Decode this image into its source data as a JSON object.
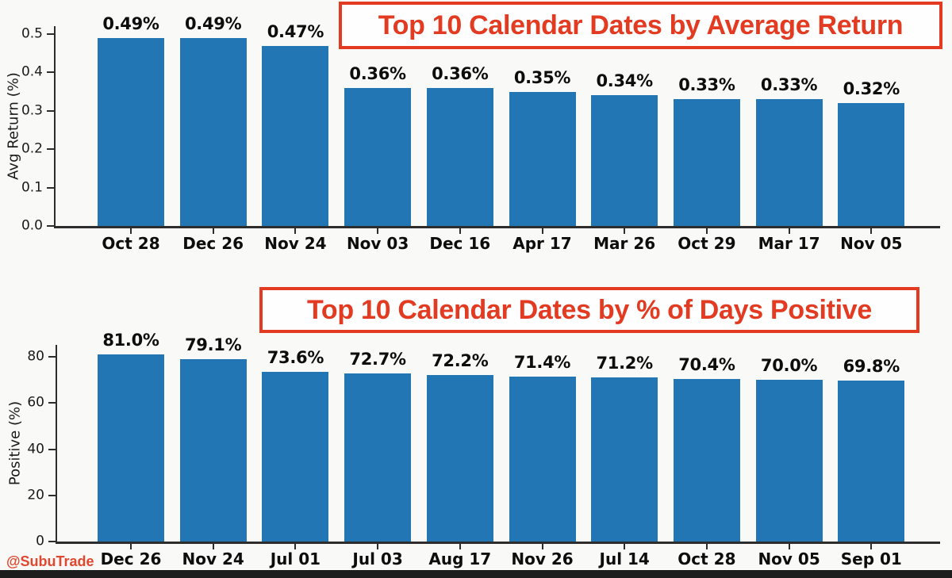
{
  "page": {
    "watermark": "@SubuTrade",
    "colors": {
      "accent_red": "#e23b22",
      "watermark_red": "#e0472e",
      "bar_blue": "#2276b4",
      "background": "#f9f9f8",
      "bottom_bar": "#1d1d1d",
      "axis": "#2d2d2d",
      "text": "#0d0d0d"
    }
  },
  "chart_data": [
    {
      "type": "bar",
      "title": "Top 10 Calendar Dates by Average Return",
      "xlabel": "",
      "ylabel": "Avg Return (%)",
      "categories": [
        "Oct 28",
        "Dec 26",
        "Nov 24",
        "Nov 03",
        "Dec 16",
        "Apr 17",
        "Mar 26",
        "Oct 29",
        "Mar 17",
        "Nov 05"
      ],
      "values": [
        0.49,
        0.49,
        0.47,
        0.36,
        0.36,
        0.35,
        0.34,
        0.33,
        0.33,
        0.32
      ],
      "bar_labels": [
        "0.49%",
        "0.49%",
        "0.47%",
        "0.36%",
        "0.36%",
        "0.35%",
        "0.34%",
        "0.33%",
        "0.33%",
        "0.32%"
      ],
      "yticks": [
        0.0,
        0.1,
        0.2,
        0.3,
        0.4,
        0.5
      ],
      "ytick_labels": [
        "0.0",
        "0.1",
        "0.2",
        "0.3",
        "0.4",
        "0.5"
      ],
      "ylim": [
        0,
        0.5
      ],
      "grid": false,
      "legend": null,
      "bar_color": "#2276b4"
    },
    {
      "type": "bar",
      "title": "Top 10 Calendar Dates by % of Days Positive",
      "xlabel": "",
      "ylabel": "Positive (%)",
      "categories": [
        "Dec 26",
        "Nov 24",
        "Jul 01",
        "Jul 03",
        "Aug 17",
        "Nov 26",
        "Jul 14",
        "Oct 28",
        "Nov 05",
        "Sep 01"
      ],
      "values": [
        81.0,
        79.1,
        73.6,
        72.7,
        72.2,
        71.4,
        71.2,
        70.4,
        70.0,
        69.8
      ],
      "bar_labels": [
        "81.0%",
        "79.1%",
        "73.6%",
        "72.7%",
        "72.2%",
        "71.4%",
        "71.2%",
        "70.4%",
        "70.0%",
        "69.8%"
      ],
      "yticks": [
        0,
        20,
        40,
        60,
        80
      ],
      "ytick_labels": [
        "0",
        "20",
        "40",
        "60",
        "80"
      ],
      "ylim": [
        0,
        80
      ],
      "grid": false,
      "legend": null,
      "bar_color": "#2276b4"
    }
  ]
}
